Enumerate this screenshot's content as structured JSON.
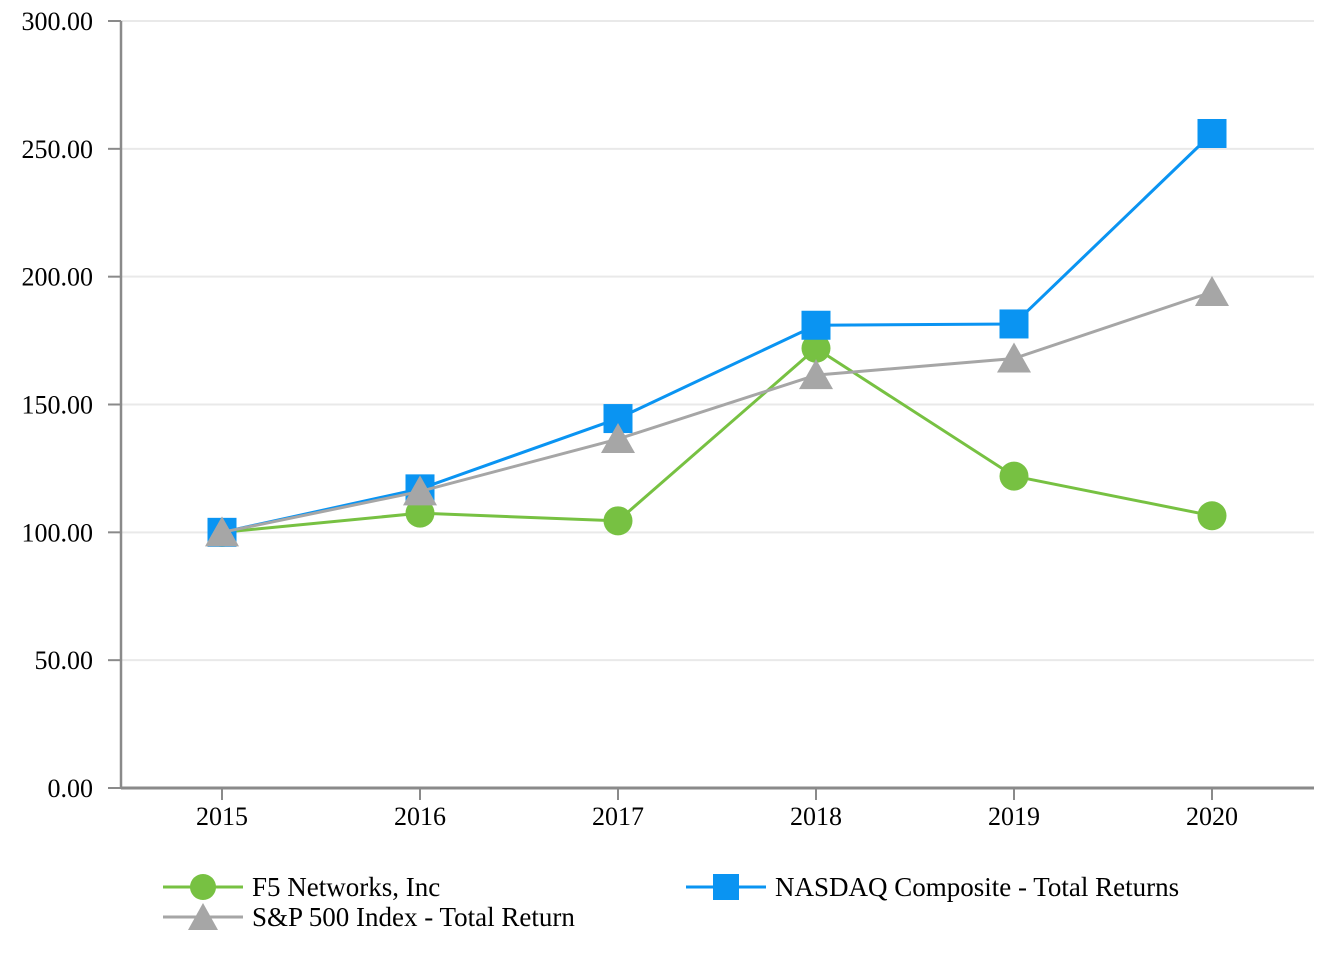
{
  "chart_data": {
    "type": "line",
    "title": "",
    "xlabel": "",
    "ylabel": "",
    "x_categories": [
      "2015",
      "2016",
      "2017",
      "2018",
      "2019",
      "2020"
    ],
    "series": [
      {
        "name": "F5 Networks, Inc",
        "marker": "circle",
        "color": "#77C142",
        "values": [
          100.0,
          107.5,
          104.5,
          172.0,
          122.0,
          106.5
        ]
      },
      {
        "name": "NASDAQ Composite - Total Returns",
        "marker": "square",
        "color": "#0A94F2",
        "values": [
          100.0,
          117.0,
          144.5,
          181.0,
          181.5,
          256.0
        ]
      },
      {
        "name": "S&P 500 Index - Total Return",
        "marker": "triangle",
        "color": "#A6A6A6",
        "values": [
          100.0,
          116.0,
          136.5,
          161.5,
          168.0,
          194.0
        ]
      }
    ],
    "ylim": [
      0,
      300
    ],
    "ytick_step": 50,
    "ytick_labels": [
      "0.00",
      "50.00",
      "100.00",
      "150.00",
      "200.00",
      "250.00",
      "300.00"
    ],
    "xtick_labels": [
      "2015",
      "2016",
      "2017",
      "2018",
      "2019",
      "2020"
    ],
    "grid": "horizontal",
    "legend_position": "bottom",
    "colors": {
      "axis": "#8A8A8A",
      "gridline": "#E9E9E9",
      "text": "#000000",
      "background": "#FFFFFF"
    }
  }
}
